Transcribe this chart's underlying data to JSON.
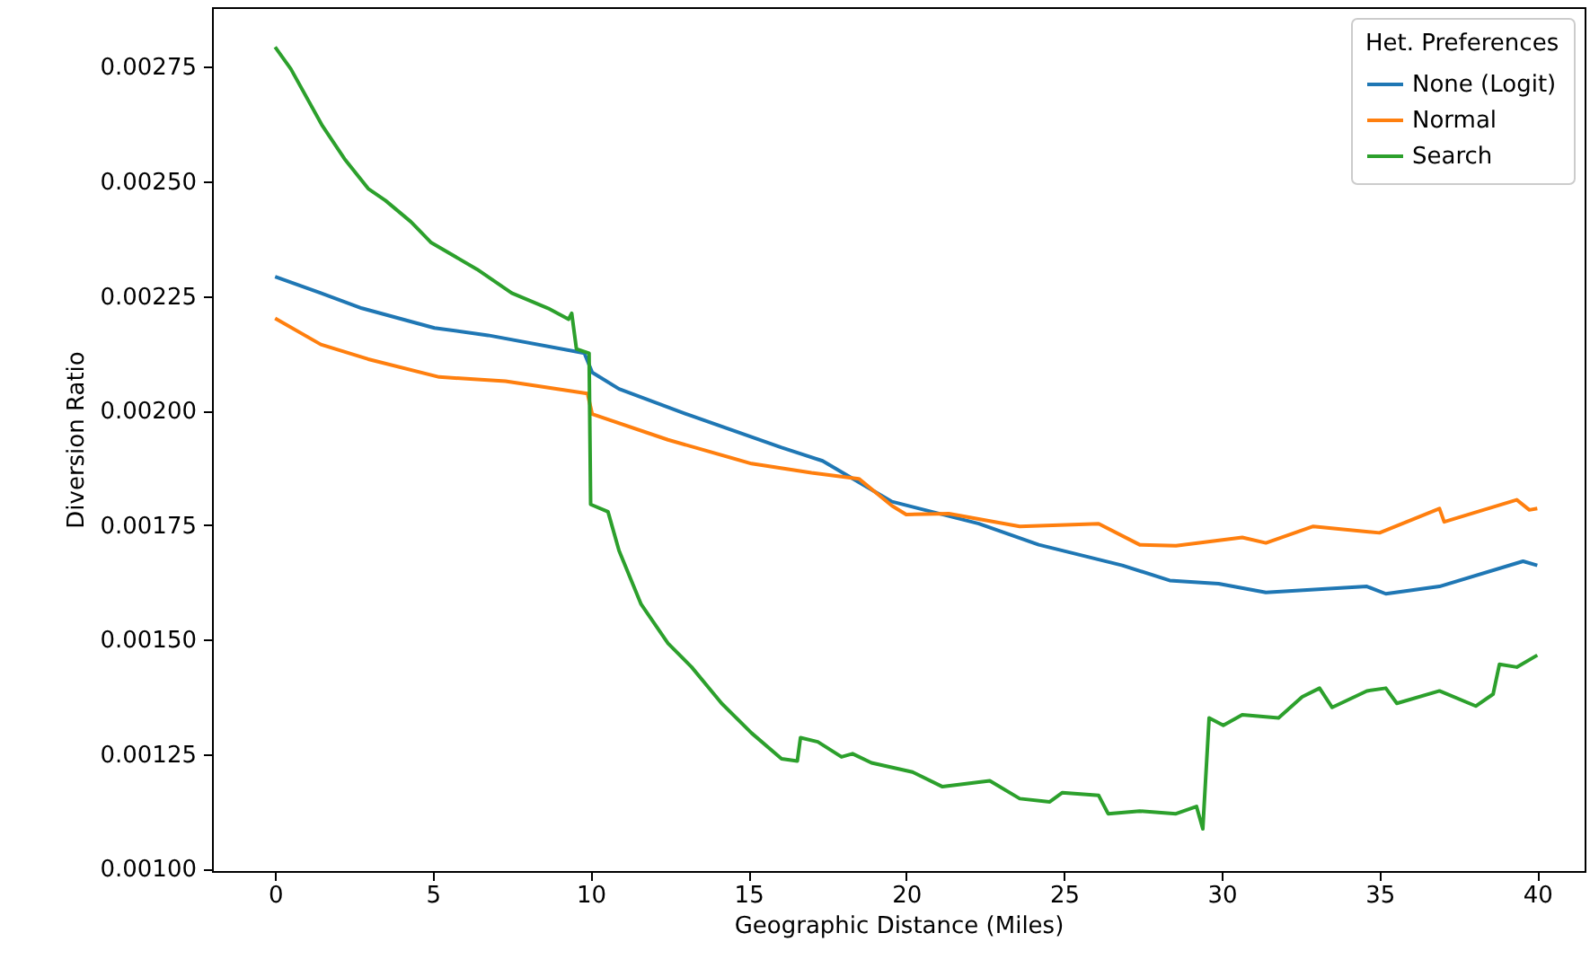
{
  "chart_data": {
    "type": "line",
    "xlabel": "Geographic Distance (Miles)",
    "ylabel": "Diversion Ratio",
    "legend_title": "Het. Preferences",
    "legend": "top right",
    "grid": false,
    "line_style": "solid",
    "marker": "none",
    "xlim": [
      -2,
      41.5
    ],
    "xticks": [
      0,
      5,
      10,
      15,
      20,
      25,
      30,
      35,
      40
    ],
    "ylim": [
      0.000995,
      0.00288
    ],
    "yticks": [
      {
        "value": 0.001,
        "label": "0.00100"
      },
      {
        "value": 0.00125,
        "label": "0.00125"
      },
      {
        "value": 0.0015,
        "label": "0.00150"
      },
      {
        "value": 0.00175,
        "label": "0.00175"
      },
      {
        "value": 0.002,
        "label": "0.00200"
      },
      {
        "value": 0.00225,
        "label": "0.00225"
      },
      {
        "value": 0.0025,
        "label": "0.00250"
      },
      {
        "value": 0.00275,
        "label": "0.00275"
      }
    ],
    "series": [
      {
        "name": "None (Logit)",
        "color": "#1f77b4",
        "x": [
          0,
          1.45,
          2.75,
          5.05,
          6.75,
          9.8,
          10.05,
          10.9,
          13.2,
          16.05,
          17.35,
          19.55,
          22.3,
          24.2,
          26.85,
          28.35,
          29.9,
          31.4,
          34.6,
          35.2,
          36.9,
          39.55,
          40.0
        ],
        "values": [
          0.002292,
          0.002256,
          0.002223,
          0.00218,
          0.002164,
          0.002125,
          0.002083,
          0.002047,
          0.001988,
          0.001919,
          0.00189,
          0.001801,
          0.001753,
          0.001707,
          0.001662,
          0.001629,
          0.001622,
          0.001603,
          0.001616,
          0.0016,
          0.001616,
          0.001671,
          0.001662
        ]
      },
      {
        "name": "Normal",
        "color": "#ff7f0e",
        "x": [
          0,
          1.45,
          2.95,
          5.2,
          7.3,
          9.9,
          10.05,
          12.45,
          15.1,
          17.0,
          18.5,
          19.55,
          20.0,
          21.35,
          23.6,
          26.1,
          27.4,
          28.55,
          30.65,
          31.4,
          32.9,
          35.0,
          36.9,
          37.05,
          39.35,
          39.75,
          40.0
        ],
        "values": [
          0.002201,
          0.002144,
          0.002112,
          0.002073,
          0.002064,
          0.002037,
          0.001992,
          0.001936,
          0.001884,
          0.001864,
          0.001851,
          0.001792,
          0.001773,
          0.001775,
          0.001747,
          0.001753,
          0.001707,
          0.001705,
          0.001723,
          0.001711,
          0.001747,
          0.001733,
          0.001786,
          0.001757,
          0.001805,
          0.001783,
          0.001786
        ]
      },
      {
        "name": "Search",
        "color": "#2ca02c",
        "x": [
          0,
          0.5,
          1.5,
          2.2,
          2.95,
          3.5,
          4.3,
          4.95,
          6.4,
          7.5,
          8.65,
          9.3,
          9.4,
          9.55,
          9.95,
          10.0,
          10.55,
          10.9,
          11.6,
          12.45,
          13.2,
          14.15,
          15.1,
          16.05,
          16.55,
          16.65,
          17.2,
          17.95,
          18.3,
          18.9,
          20.2,
          21.15,
          22.65,
          23.6,
          24.55,
          24.95,
          26.1,
          26.4,
          27.4,
          28.55,
          29.2,
          29.4,
          29.6,
          30.05,
          30.65,
          31.8,
          32.55,
          33.1,
          33.5,
          34.6,
          35.2,
          35.55,
          36.9,
          38.05,
          38.6,
          38.8,
          39.35,
          40.0
        ],
        "values": [
          0.002793,
          0.002745,
          0.002621,
          0.002549,
          0.002484,
          0.002458,
          0.002412,
          0.002366,
          0.002308,
          0.002256,
          0.002223,
          0.002199,
          0.002212,
          0.002134,
          0.002125,
          0.001795,
          0.001779,
          0.001694,
          0.001577,
          0.001492,
          0.00144,
          0.001361,
          0.001296,
          0.00124,
          0.001235,
          0.001286,
          0.001277,
          0.001244,
          0.001251,
          0.001231,
          0.001211,
          0.001179,
          0.001192,
          0.001153,
          0.001146,
          0.001166,
          0.00116,
          0.00112,
          0.001126,
          0.00112,
          0.001136,
          0.001087,
          0.001329,
          0.001313,
          0.001336,
          0.001329,
          0.001375,
          0.001394,
          0.001352,
          0.001388,
          0.001394,
          0.001361,
          0.001388,
          0.001355,
          0.001381,
          0.001446,
          0.00144,
          0.001466
        ]
      }
    ]
  }
}
